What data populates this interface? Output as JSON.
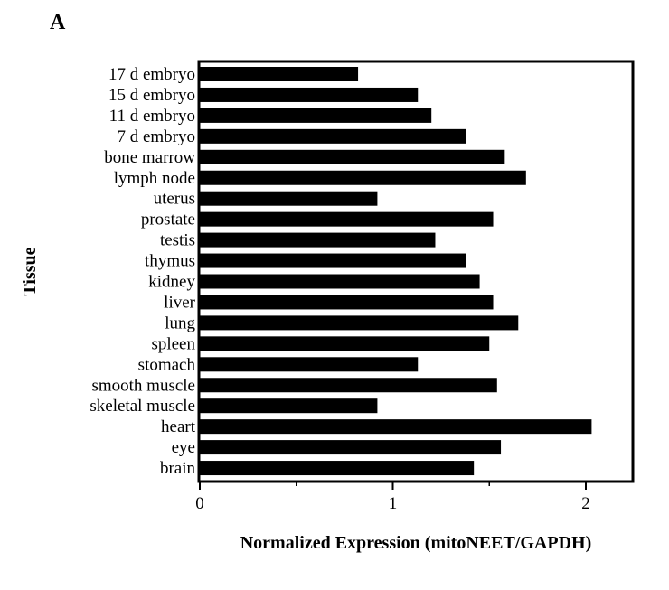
{
  "panel_label": "A",
  "chart_data": {
    "type": "bar",
    "orientation": "horizontal",
    "categories": [
      "17 d embryo",
      "15 d embryo",
      "11 d embryo",
      "7 d embryo",
      "bone marrow",
      "lymph node",
      "uterus",
      "prostate",
      "testis",
      "thymus",
      "kidney",
      "liver",
      "lung",
      "spleen",
      "stomach",
      "smooth muscle",
      "skeletal muscle",
      "heart",
      "eye",
      "brain"
    ],
    "values": [
      0.82,
      1.13,
      1.2,
      1.38,
      1.58,
      1.69,
      0.92,
      1.52,
      1.22,
      1.38,
      1.45,
      1.52,
      1.65,
      1.5,
      1.13,
      1.54,
      0.92,
      2.03,
      1.56,
      1.42
    ],
    "title": "",
    "xlabel": "Normalized Expression (mitoNEET/GAPDH)",
    "ylabel": "Tissue",
    "xlim": [
      0,
      2.25
    ],
    "xticks": [
      0,
      1,
      2
    ],
    "xtick_labels": [
      "0",
      "1",
      "2"
    ],
    "bar_color": "#000000",
    "grid": false,
    "legend": "none"
  }
}
